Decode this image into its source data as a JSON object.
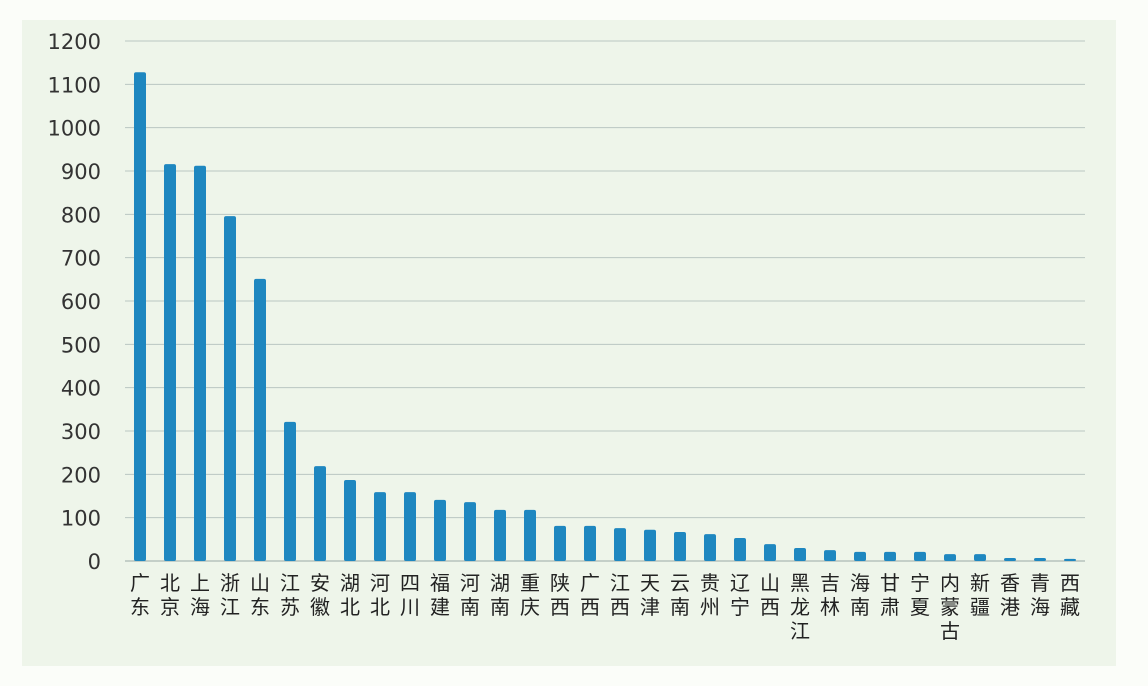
{
  "chart_data": {
    "type": "bar",
    "title": "",
    "xlabel": "",
    "ylabel": "",
    "ylim": [
      0,
      1200
    ],
    "yticks": [
      0,
      100,
      200,
      300,
      400,
      500,
      600,
      700,
      800,
      900,
      1000,
      1100,
      1200
    ],
    "grid": true,
    "bar_color": "#1e87c0",
    "categories": [
      "广东",
      "北京",
      "上海",
      "浙江",
      "山东",
      "江苏",
      "安徽",
      "湖北",
      "河北",
      "四川",
      "福建",
      "河南",
      "湖南",
      "重庆",
      "陕西",
      "广西",
      "江西",
      "天津",
      "云南",
      "贵州",
      "辽宁",
      "山西",
      "黑龙江",
      "吉林",
      "海南",
      "甘肃",
      "宁夏",
      "内蒙古",
      "新疆",
      "香港",
      "青海",
      "西藏"
    ],
    "values": [
      1128,
      916,
      912,
      796,
      651,
      321,
      219,
      187,
      159,
      159,
      141,
      136,
      118,
      118,
      81,
      81,
      76,
      72,
      67,
      62,
      53,
      39,
      30,
      25,
      21,
      21,
      21,
      16,
      16,
      7,
      7,
      5
    ]
  }
}
